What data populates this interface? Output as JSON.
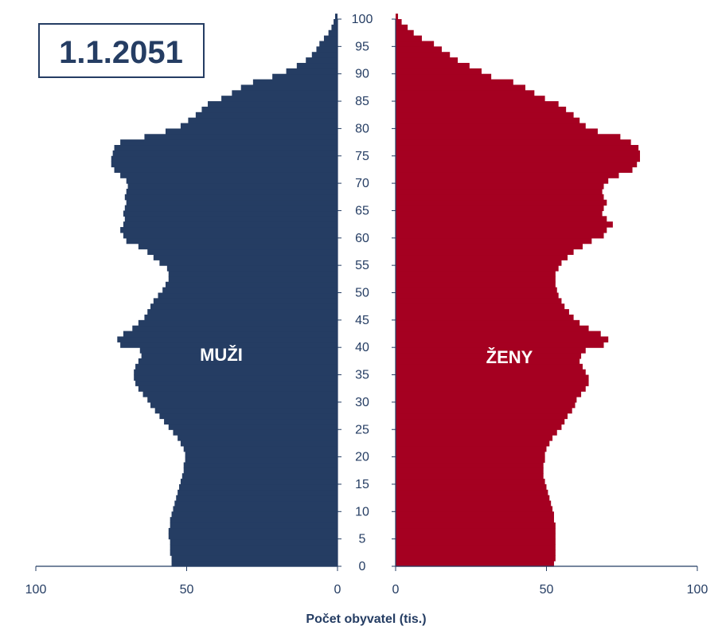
{
  "chart_data": {
    "type": "bar",
    "orientation": "population-pyramid",
    "title": "1.1.2051",
    "xlabel": "Počet obyvatel (tis.)",
    "ages": [
      0,
      100
    ],
    "age_ticks": [
      0,
      5,
      10,
      15,
      20,
      25,
      30,
      35,
      40,
      45,
      50,
      55,
      60,
      65,
      70,
      75,
      80,
      85,
      90,
      95,
      100
    ],
    "x_ticks_left": [
      100,
      50,
      0
    ],
    "x_ticks_right": [
      0,
      50,
      100
    ],
    "xlim": [
      0,
      100
    ],
    "grid": false,
    "series": [
      {
        "name": "MUŽI",
        "color": "#253d63",
        "side": "left",
        "values": [
          55,
          55,
          55.5,
          55.5,
          55.5,
          56,
          56,
          55.5,
          55.5,
          55,
          54.5,
          54,
          53.5,
          53,
          52.5,
          52,
          51.5,
          51,
          51,
          50.5,
          50.5,
          51,
          52,
          53,
          54.5,
          56,
          57.5,
          59,
          60.5,
          62,
          63,
          64.5,
          66,
          67,
          67.5,
          67.5,
          67,
          66,
          65,
          65.5,
          72,
          73,
          71,
          68,
          66,
          64,
          63,
          62,
          61,
          59.5,
          58,
          57,
          56,
          56,
          56.5,
          59,
          61,
          63,
          66,
          70,
          71,
          72,
          71,
          70.5,
          71,
          70.5,
          70,
          70.5,
          70,
          69.5,
          70,
          72,
          74,
          75,
          75,
          74.5,
          74,
          72,
          64,
          57,
          52,
          49.5,
          47,
          45,
          43,
          38.5,
          35,
          32,
          28,
          21.6,
          17,
          13.5,
          10.5,
          8.5,
          7,
          6,
          4.5,
          3,
          2,
          1.3,
          0.8
        ]
      },
      {
        "name": "ŽENY",
        "color": "#a50021",
        "side": "right",
        "values": [
          52.5,
          53,
          53,
          53,
          53,
          53,
          53,
          53,
          52.5,
          52.5,
          52,
          51.5,
          51,
          50.5,
          50,
          49.5,
          49,
          49,
          49,
          49.5,
          49.5,
          50,
          51,
          52,
          53.5,
          55,
          56,
          57,
          58.5,
          59.5,
          60,
          61.5,
          63,
          64,
          64,
          63,
          62,
          61,
          61.5,
          63,
          69,
          70.5,
          68,
          64,
          61,
          59,
          57.5,
          56,
          55,
          54,
          53.5,
          53,
          53,
          53,
          54,
          55,
          57,
          59,
          62,
          65,
          69,
          70,
          72,
          70,
          68.5,
          69,
          70,
          69,
          68.5,
          69,
          70.5,
          74,
          78.5,
          80,
          81,
          81,
          80.5,
          78,
          74.5,
          67,
          63,
          61,
          59,
          56.5,
          54,
          49.5,
          46,
          43,
          39,
          31.7,
          28.5,
          24.5,
          20.6,
          18,
          15.3,
          12.7,
          8.7,
          6,
          4,
          2,
          0.8
        ]
      }
    ]
  }
}
